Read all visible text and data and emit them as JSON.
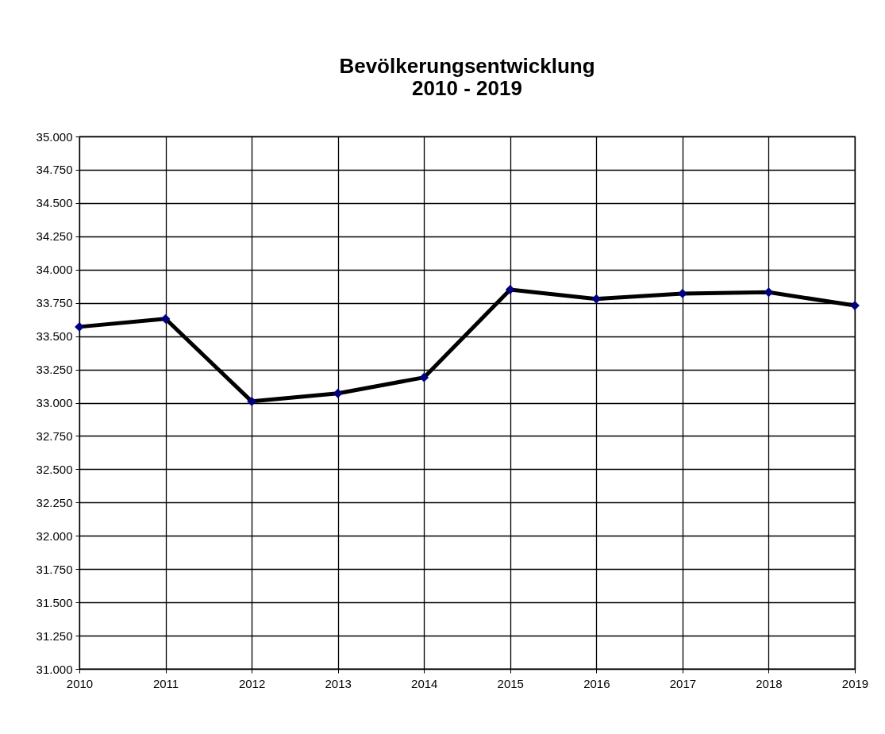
{
  "chart_data": {
    "type": "line",
    "title": [
      "Bevölkerungsentwicklung",
      "2010 - 2019"
    ],
    "x": [
      2010,
      2011,
      2012,
      2013,
      2014,
      2015,
      2016,
      2017,
      2018,
      2019
    ],
    "series": [
      {
        "color": "#000000",
        "values": [
          33570,
          33630,
          33010,
          33070,
          33190,
          33850,
          33780,
          33820,
          33830,
          33730
        ]
      }
    ],
    "xlim": [
      2010,
      2019
    ],
    "xticks": [
      2010,
      2011,
      2012,
      2013,
      2014,
      2015,
      2016,
      2017,
      2018,
      2019
    ],
    "ylim": [
      31000,
      35000
    ],
    "yticks": [
      {
        "value": 31000,
        "label": "31.000"
      },
      {
        "value": 31250,
        "label": "31.250"
      },
      {
        "value": 31500,
        "label": "31.500"
      },
      {
        "value": 31750,
        "label": "31.750"
      },
      {
        "value": 32000,
        "label": "32.000"
      },
      {
        "value": 32250,
        "label": "32.250"
      },
      {
        "value": 32500,
        "label": "32.500"
      },
      {
        "value": 32750,
        "label": "32.750"
      },
      {
        "value": 33000,
        "label": "33.000"
      },
      {
        "value": 33250,
        "label": "33.250"
      },
      {
        "value": 33500,
        "label": "33.500"
      },
      {
        "value": 33750,
        "label": "33.750"
      },
      {
        "value": 34000,
        "label": "34.000"
      },
      {
        "value": 34250,
        "label": "34.250"
      },
      {
        "value": 34500,
        "label": "34.500"
      },
      {
        "value": 34750,
        "label": "34.750"
      },
      {
        "value": 35000,
        "label": "35.000"
      }
    ],
    "grid": true,
    "marker": "diamond",
    "line_style": "solid"
  }
}
